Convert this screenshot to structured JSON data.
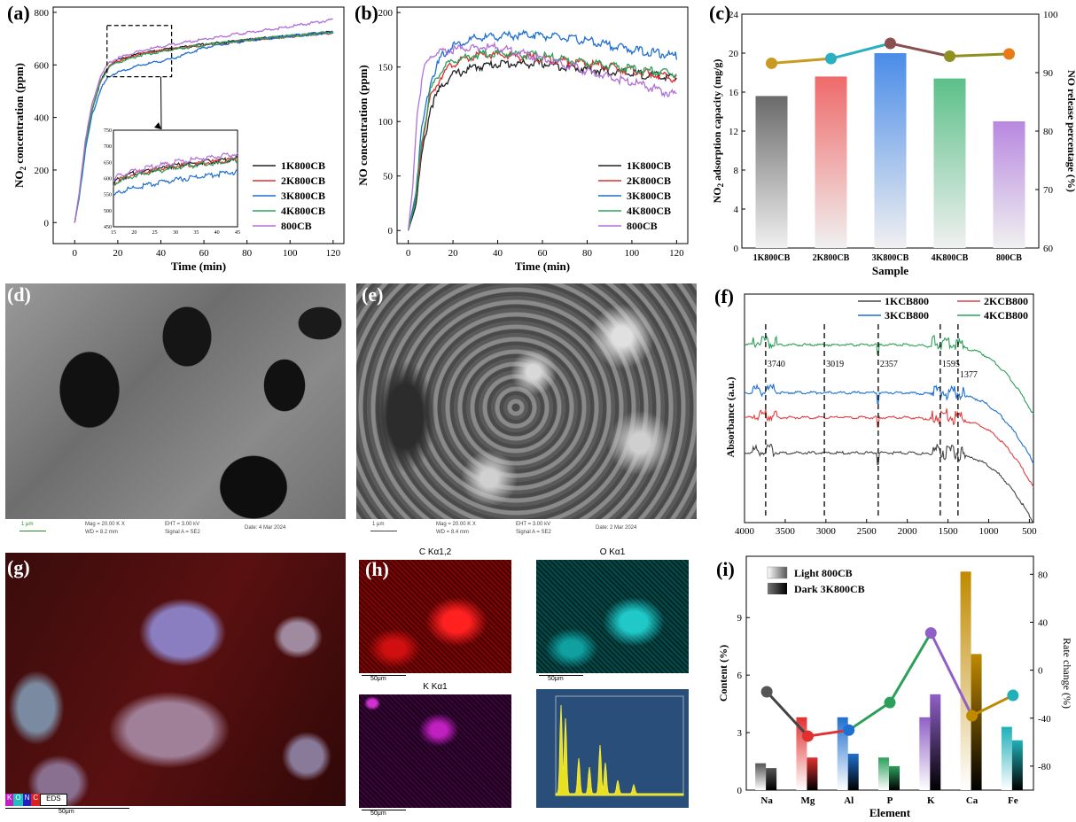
{
  "panel_labels": [
    "(a)",
    "(b)",
    "(c)",
    "(d)",
    "(e)",
    "(f)",
    "(g)",
    "(h)",
    "(i)"
  ],
  "chart_data": [
    {
      "id": "a",
      "type": "line",
      "xlabel": "Time (min)",
      "ylabel": "NO2 concentration (ppm)",
      "xlim": [
        -10,
        125
      ],
      "ylim": [
        -80,
        820
      ],
      "xticks": [
        0,
        20,
        40,
        60,
        80,
        100,
        120
      ],
      "yticks": [
        0,
        200,
        400,
        600,
        800
      ],
      "legend_position": "center-right",
      "series": [
        {
          "name": "1K800CB",
          "color": "#222222",
          "points": [
            [
              0,
              0
            ],
            [
              2,
              100
            ],
            [
              5,
              300
            ],
            [
              8,
              430
            ],
            [
              12,
              540
            ],
            [
              16,
              600
            ],
            [
              20,
              620
            ],
            [
              30,
              645
            ],
            [
              45,
              665
            ],
            [
              60,
              680
            ],
            [
              80,
              698
            ],
            [
              100,
              712
            ],
            [
              120,
              728
            ]
          ]
        },
        {
          "name": "2K800CB",
          "color": "#e03030",
          "points": [
            [
              0,
              0
            ],
            [
              2,
              100
            ],
            [
              5,
              300
            ],
            [
              8,
              430
            ],
            [
              12,
              540
            ],
            [
              16,
              598
            ],
            [
              20,
              618
            ],
            [
              30,
              643
            ],
            [
              45,
              663
            ],
            [
              60,
              678
            ],
            [
              80,
              697
            ],
            [
              100,
              711
            ],
            [
              120,
              725
            ]
          ]
        },
        {
          "name": "3K800CB",
          "color": "#1f6fd0",
          "points": [
            [
              0,
              0
            ],
            [
              2,
              90
            ],
            [
              5,
              280
            ],
            [
              8,
              410
            ],
            [
              12,
              510
            ],
            [
              16,
              560
            ],
            [
              20,
              575
            ],
            [
              30,
              600
            ],
            [
              45,
              625
            ],
            [
              60,
              668
            ],
            [
              80,
              695
            ],
            [
              100,
              712
            ],
            [
              120,
              726
            ]
          ]
        },
        {
          "name": "4K800CB",
          "color": "#2ca05a",
          "points": [
            [
              0,
              0
            ],
            [
              2,
              100
            ],
            [
              5,
              300
            ],
            [
              8,
              430
            ],
            [
              12,
              540
            ],
            [
              16,
              595
            ],
            [
              20,
              612
            ],
            [
              30,
              638
            ],
            [
              45,
              660
            ],
            [
              60,
              678
            ],
            [
              80,
              698
            ],
            [
              100,
              712
            ],
            [
              120,
              728
            ]
          ]
        },
        {
          "name": "800CB",
          "color": "#b070d8",
          "points": [
            [
              0,
              0
            ],
            [
              2,
              110
            ],
            [
              5,
              320
            ],
            [
              8,
              450
            ],
            [
              12,
              560
            ],
            [
              16,
              610
            ],
            [
              20,
              628
            ],
            [
              30,
              655
            ],
            [
              45,
              680
            ],
            [
              60,
              700
            ],
            [
              80,
              725
            ],
            [
              100,
              748
            ],
            [
              120,
              775
            ]
          ]
        }
      ],
      "inset": {
        "xlim": [
          15,
          45
        ],
        "ylim": [
          450,
          750
        ],
        "xticks": [
          15,
          20,
          25,
          30,
          35,
          40,
          45
        ],
        "yticks": [
          450,
          500,
          550,
          600,
          650,
          700,
          750
        ]
      }
    },
    {
      "id": "b",
      "type": "line",
      "xlabel": "Time (min)",
      "ylabel": "NO concentration (ppm)",
      "xlim": [
        -5,
        125
      ],
      "ylim": [
        -12,
        205
      ],
      "xticks": [
        0,
        20,
        40,
        60,
        80,
        100,
        120
      ],
      "yticks": [
        0,
        50,
        100,
        150,
        200
      ],
      "legend_position": "center-right",
      "series": [
        {
          "name": "1K800CB",
          "color": "#222222",
          "points": [
            [
              0,
              0
            ],
            [
              3,
              20
            ],
            [
              6,
              70
            ],
            [
              10,
              115
            ],
            [
              15,
              135
            ],
            [
              20,
              145
            ],
            [
              30,
              152
            ],
            [
              40,
              155
            ],
            [
              60,
              155
            ],
            [
              80,
              150
            ],
            [
              100,
              146
            ],
            [
              120,
              142
            ]
          ]
        },
        {
          "name": "2K800CB",
          "color": "#e03030",
          "points": [
            [
              0,
              0
            ],
            [
              3,
              25
            ],
            [
              6,
              80
            ],
            [
              10,
              125
            ],
            [
              15,
              145
            ],
            [
              20,
              155
            ],
            [
              30,
              162
            ],
            [
              40,
              163
            ],
            [
              60,
              160
            ],
            [
              80,
              155
            ],
            [
              100,
              149
            ],
            [
              120,
              141
            ]
          ]
        },
        {
          "name": "3K800CB",
          "color": "#1f6fd0",
          "points": [
            [
              0,
              0
            ],
            [
              3,
              30
            ],
            [
              6,
              95
            ],
            [
              10,
              140
            ],
            [
              15,
              162
            ],
            [
              20,
              172
            ],
            [
              30,
              178
            ],
            [
              40,
              180
            ],
            [
              55,
              182
            ],
            [
              80,
              176
            ],
            [
              100,
              168
            ],
            [
              120,
              162
            ]
          ]
        },
        {
          "name": "4K800CB",
          "color": "#2ca05a",
          "points": [
            [
              0,
              0
            ],
            [
              3,
              25
            ],
            [
              6,
              85
            ],
            [
              10,
              130
            ],
            [
              15,
              150
            ],
            [
              20,
              158
            ],
            [
              30,
              163
            ],
            [
              40,
              165
            ],
            [
              60,
              162
            ],
            [
              80,
              156
            ],
            [
              100,
              150
            ],
            [
              120,
              146
            ]
          ]
        },
        {
          "name": "800CB",
          "color": "#b070d8",
          "points": [
            [
              0,
              0
            ],
            [
              2,
              40
            ],
            [
              4,
              110
            ],
            [
              7,
              150
            ],
            [
              10,
              162
            ],
            [
              20,
              168
            ],
            [
              30,
              170
            ],
            [
              40,
              170
            ],
            [
              60,
              160
            ],
            [
              80,
              148
            ],
            [
              100,
              138
            ],
            [
              120,
              126
            ]
          ]
        }
      ]
    },
    {
      "id": "c",
      "type": "bar",
      "xlabel": "Sample",
      "ylabel": "NO2 adsorption capacity (mg/g)",
      "y2label": "NO release percentage (%)",
      "categories": [
        "1K800CB",
        "2K800CB",
        "3K800CB",
        "4K800CB",
        "800CB"
      ],
      "bar_values": [
        15.6,
        17.6,
        20.0,
        17.4,
        13.0
      ],
      "bar_colors": [
        "#6a6a6a",
        "#ef6a6a",
        "#4a8ce8",
        "#5cc08a",
        "#b888e0"
      ],
      "line_values": [
        91.6,
        92.4,
        95.0,
        92.8,
        93.2
      ],
      "line_colors": [
        "#c89a20",
        "#2ab0c0",
        "#8a5050",
        "#909020",
        "#e87a1a"
      ],
      "ylim": [
        0,
        24
      ],
      "yticks": [
        0,
        4,
        8,
        12,
        16,
        20,
        24
      ],
      "y2lim": [
        60,
        100
      ],
      "y2ticks": [
        60,
        70,
        80,
        90,
        100
      ]
    },
    {
      "id": "f",
      "type": "line",
      "xlabel": "",
      "ylabel": "Absorbance (a.u.)",
      "xlim": [
        4000,
        450
      ],
      "xticks": [
        4000,
        3500,
        3000,
        2500,
        2000,
        1500,
        1000,
        500
      ],
      "legend_position": "top",
      "series": [
        {
          "name": "1KCB800",
          "color": "#444444"
        },
        {
          "name": "2KCB800",
          "color": "#e04040"
        },
        {
          "name": "3KCB800",
          "color": "#1f6fd0"
        },
        {
          "name": "4KCB800",
          "color": "#2ca05a"
        }
      ],
      "annotations": [
        {
          "x": 3740,
          "label": "3740"
        },
        {
          "x": 3019,
          "label": "3019"
        },
        {
          "x": 2357,
          "label": "2357"
        },
        {
          "x": 1595,
          "label": "1595"
        },
        {
          "x": 1377,
          "label": "1377"
        }
      ]
    },
    {
      "id": "i",
      "type": "bar",
      "xlabel": "Element",
      "ylabel": "Content (%)",
      "y2label": "Rate change (%)",
      "categories": [
        "Na",
        "Mg",
        "Al",
        "P",
        "K",
        "Ca",
        "Fe"
      ],
      "legend": [
        "Light  800CB",
        "Dark   3K800CB"
      ],
      "series": [
        {
          "name": "800CB",
          "values": [
            1.4,
            3.8,
            3.8,
            1.7,
            3.8,
            11.4,
            3.3
          ]
        },
        {
          "name": "3K800CB",
          "values": [
            1.15,
            1.7,
            1.9,
            1.25,
            5.0,
            7.1,
            2.6
          ]
        }
      ],
      "bar_colors": [
        "#555555",
        "#e03030",
        "#1f6fd0",
        "#2ca05a",
        "#9060c8",
        "#c08a00",
        "#20b0b8"
      ],
      "rate_change": [
        -18,
        -55,
        -50,
        -27,
        31,
        -38,
        -21
      ],
      "ylim": [
        0,
        12.2
      ],
      "yticks": [
        0,
        3,
        6,
        9
      ],
      "y2lim": [
        -100,
        95
      ],
      "y2ticks": [
        -80,
        -40,
        0,
        40,
        80
      ]
    }
  ],
  "sem_d": {
    "scale": "1 μm",
    "mag": "Mag =  20.00 K X",
    "wd": "WD =  8.2 mm",
    "eht": "EHT =  3.00 kV",
    "signal": "Signal A = SE2",
    "date": "Date: 4 Mar 2024"
  },
  "sem_e": {
    "scale": "1 μm",
    "mag": "Mag =  20.00 K X",
    "wd": "WD =  8.4 mm",
    "eht": "EHT =  3.00 kV",
    "signal": "Signal A = SE2",
    "date": "Date: 2 Mar 2024"
  },
  "eds_g": {
    "badges": [
      "K",
      "O",
      "N",
      "C"
    ],
    "eds": "EDS",
    "scale": "50μm"
  },
  "eds_h": {
    "c_title": "C Kα1,2",
    "o_title": "O Kα1",
    "k_title": "K Kα1",
    "scale": "50μm"
  }
}
